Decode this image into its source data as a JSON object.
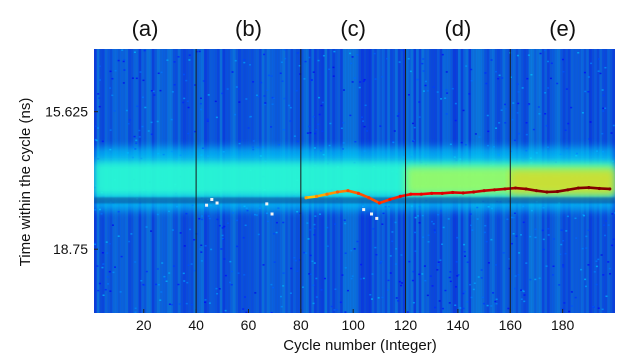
{
  "chart_data": {
    "type": "heatmap",
    "title": "",
    "xlabel": "Cycle number (Integer)",
    "ylabel": "Time within the cycle (ns)",
    "xlim": [
      1,
      200
    ],
    "ylim_top": 14.2,
    "ylim_bottom": 20.2,
    "x_ticks": [
      20,
      40,
      60,
      80,
      100,
      120,
      140,
      160,
      180
    ],
    "x_tick_labels": [
      "20",
      "40",
      "60",
      "80",
      "100",
      "120",
      "140",
      "160",
      "180"
    ],
    "y_ticks": [
      15.625,
      18.75
    ],
    "y_tick_labels": [
      "15.625",
      "18.75"
    ],
    "panel_labels": [
      "(a)",
      "(b)",
      "(c)",
      "(d)",
      "(e)"
    ],
    "panel_boundaries": [
      40,
      80,
      120,
      160
    ],
    "background_band": {
      "center": 17.15,
      "half_width": 0.4
    },
    "signal_trace": {
      "cycles": [
        82,
        86,
        90,
        94,
        98,
        102,
        106,
        110,
        114,
        118,
        122,
        126,
        130,
        134,
        138,
        142,
        146,
        150,
        154,
        158,
        162,
        166,
        170,
        174,
        178,
        182,
        186,
        190,
        194,
        198
      ],
      "times": [
        17.58,
        17.55,
        17.5,
        17.45,
        17.42,
        17.48,
        17.58,
        17.7,
        17.62,
        17.55,
        17.5,
        17.5,
        17.48,
        17.48,
        17.46,
        17.47,
        17.45,
        17.42,
        17.4,
        17.38,
        17.36,
        17.38,
        17.42,
        17.45,
        17.44,
        17.4,
        17.36,
        17.35,
        17.37,
        17.38
      ],
      "intensity": [
        0.3,
        0.35,
        0.4,
        0.45,
        0.5,
        0.55,
        0.55,
        0.6,
        0.65,
        0.7,
        0.72,
        0.74,
        0.76,
        0.78,
        0.8,
        0.82,
        0.84,
        0.86,
        0.88,
        0.9,
        0.95,
        0.97,
        0.98,
        0.99,
        1.0,
        1.0,
        1.0,
        1.0,
        1.0,
        1.0
      ]
    },
    "sparse_points": [
      {
        "x": 44,
        "y": 17.75
      },
      {
        "x": 46,
        "y": 17.62
      },
      {
        "x": 48,
        "y": 17.7
      },
      {
        "x": 67,
        "y": 17.72
      },
      {
        "x": 69,
        "y": 17.95
      },
      {
        "x": 104,
        "y": 17.85
      },
      {
        "x": 107,
        "y": 17.95
      },
      {
        "x": 109,
        "y": 18.05
      }
    ],
    "colormap": "jet",
    "grid": false
  }
}
